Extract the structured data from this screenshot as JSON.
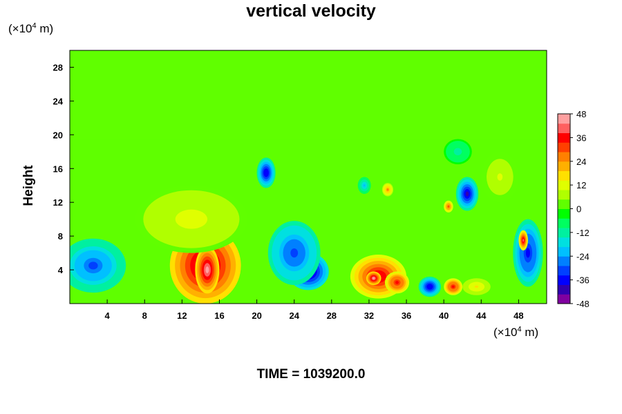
{
  "chart_data": {
    "type": "heatmap",
    "title": "vertical velocity",
    "xlabel": "",
    "ylabel": "Height",
    "x_unit_prefix": "(×10",
    "x_unit_exp": "4",
    "x_unit_suffix": " m)",
    "y_unit_prefix": "(×10",
    "y_unit_exp": "4",
    "y_unit_suffix": " m)",
    "xlim": [
      0,
      51
    ],
    "ylim": [
      0,
      30
    ],
    "xticks": [
      "4",
      "8",
      "12",
      "16",
      "20",
      "24",
      "28",
      "32",
      "36",
      "40",
      "44",
      "48"
    ],
    "xtick_values": [
      4,
      8,
      12,
      16,
      20,
      24,
      28,
      32,
      36,
      40,
      44,
      48
    ],
    "yticks": [
      "4",
      "8",
      "12",
      "16",
      "20",
      "24",
      "28"
    ],
    "ytick_values": [
      4,
      8,
      12,
      16,
      20,
      24,
      28
    ],
    "colorbar": {
      "min": -48,
      "max": 48,
      "ticks": [
        "48",
        "36",
        "24",
        "12",
        "0",
        "-12",
        "-24",
        "-36",
        "-48"
      ],
      "tick_values": [
        48,
        36,
        24,
        12,
        0,
        -12,
        -24,
        -36,
        -48
      ],
      "colors": [
        "#8000a0",
        "#3000b0",
        "#0000ff",
        "#0040ff",
        "#0080ff",
        "#00c0ff",
        "#00e0e0",
        "#00f0a0",
        "#00ff60",
        "#00ff00",
        "#60ff00",
        "#b0ff00",
        "#e0ff00",
        "#ffe000",
        "#ffb000",
        "#ff8000",
        "#ff4000",
        "#ff0000",
        "#ff6060",
        "#ffa0a0"
      ]
    },
    "background_value": 0,
    "features": [
      {
        "x": 14.5,
        "y": 4.5,
        "rx": 3.8,
        "ry": 4.5,
        "value": 44
      },
      {
        "x": 14.7,
        "y": 4.0,
        "rx": 1.3,
        "ry": 2.8,
        "value": 48
      },
      {
        "x": 25.5,
        "y": 3.8,
        "rx": 2.2,
        "ry": 2.2,
        "value": -48
      },
      {
        "x": 24.0,
        "y": 6.0,
        "rx": 2.8,
        "ry": 3.8,
        "value": -32
      },
      {
        "x": 33.0,
        "y": 3.2,
        "rx": 3.0,
        "ry": 2.6,
        "value": 38
      },
      {
        "x": 32.5,
        "y": 3.0,
        "rx": 0.8,
        "ry": 0.8,
        "value": 48
      },
      {
        "x": 35.0,
        "y": 2.5,
        "rx": 1.3,
        "ry": 1.3,
        "value": 36
      },
      {
        "x": 2.5,
        "y": 4.5,
        "rx": 3.5,
        "ry": 3.2,
        "value": -30
      },
      {
        "x": 49.0,
        "y": 6.0,
        "rx": 1.6,
        "ry": 4.0,
        "value": -36
      },
      {
        "x": 48.5,
        "y": 7.5,
        "rx": 0.5,
        "ry": 1.2,
        "value": 40
      },
      {
        "x": 21.0,
        "y": 15.5,
        "rx": 1.0,
        "ry": 1.8,
        "value": -38
      },
      {
        "x": 42.5,
        "y": 13.0,
        "rx": 1.2,
        "ry": 2.0,
        "value": -40
      },
      {
        "x": 38.5,
        "y": 2.0,
        "rx": 1.2,
        "ry": 1.2,
        "value": -38
      },
      {
        "x": 41.0,
        "y": 2.0,
        "rx": 1.0,
        "ry": 1.0,
        "value": 36
      },
      {
        "x": 43.5,
        "y": 2.0,
        "rx": 1.5,
        "ry": 1.0,
        "value": 16
      },
      {
        "x": 34.0,
        "y": 13.5,
        "rx": 0.6,
        "ry": 0.8,
        "value": 24
      },
      {
        "x": 40.5,
        "y": 11.5,
        "rx": 0.5,
        "ry": 0.7,
        "value": 30
      },
      {
        "x": 41.5,
        "y": 18.0,
        "rx": 1.5,
        "ry": 1.5,
        "value": -12
      },
      {
        "x": 31.5,
        "y": 14.0,
        "rx": 0.7,
        "ry": 1.0,
        "value": -20
      },
      {
        "x": 13.0,
        "y": 10.0,
        "rx": 6.0,
        "ry": 4.0,
        "value": 12
      },
      {
        "x": 46.0,
        "y": 15.0,
        "rx": 2.0,
        "ry": 3.0,
        "value": 10
      }
    ]
  },
  "footer": {
    "label": "TIME = 1039200.0"
  }
}
